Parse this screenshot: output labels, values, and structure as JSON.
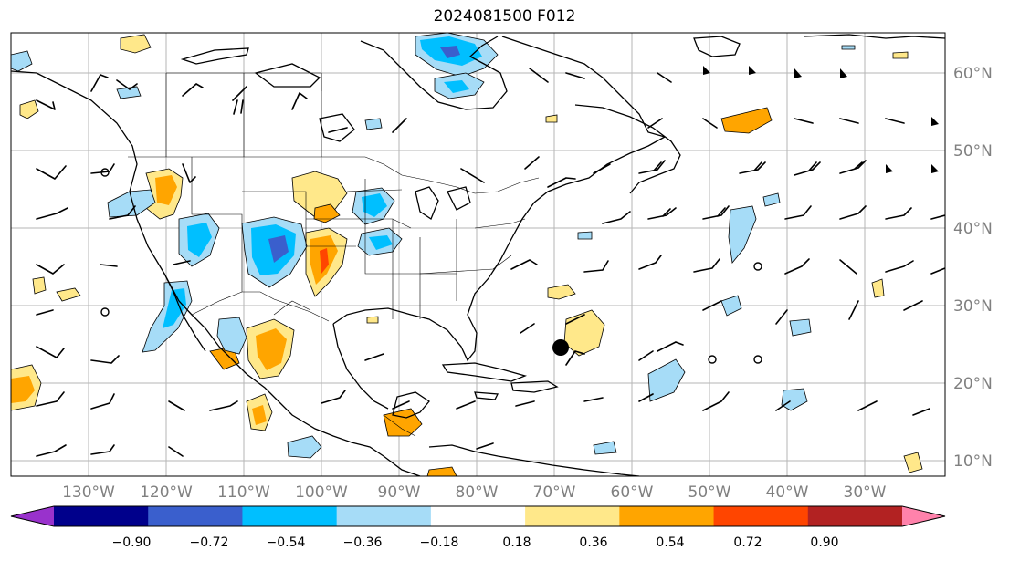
{
  "title": "2024081500 F012",
  "map": {
    "projection": "PlateCarree",
    "lon_range": [
      -137,
      -15
    ],
    "lat_range": [
      8,
      65
    ],
    "lon_labels": [
      "130°W",
      "120°W",
      "110°W",
      "100°W",
      "90°W",
      "80°W",
      "70°W",
      "60°W",
      "50°W",
      "40°W",
      "30°W"
    ],
    "lat_labels": [
      "10°N",
      "20°N",
      "30°N",
      "40°N",
      "50°N",
      "60°N"
    ],
    "gridlines": true,
    "features": [
      "coastlines",
      "country-borders",
      "us-state-borders",
      "wind-barbs",
      "hurricane-marker"
    ]
  },
  "colorbar": {
    "ticks": [
      "−0.90",
      "−0.72",
      "−0.54",
      "−0.36",
      "−0.18",
      "0.18",
      "0.36",
      "0.54",
      "0.72",
      "0.90"
    ],
    "colors": [
      "#9932cc",
      "#00008b",
      "#3a5fcd",
      "#00bfff",
      "#a6dcf7",
      "#ffffff",
      "#ffe88a",
      "#ffa500",
      "#ff4500",
      "#b22222",
      "#ff82ab"
    ],
    "extend": "both"
  },
  "colors": {
    "positive": "#ffa500",
    "negative": "#00bfff",
    "barb": "#000000",
    "grid": "#b0b0b0",
    "axis_label": "#808080"
  }
}
